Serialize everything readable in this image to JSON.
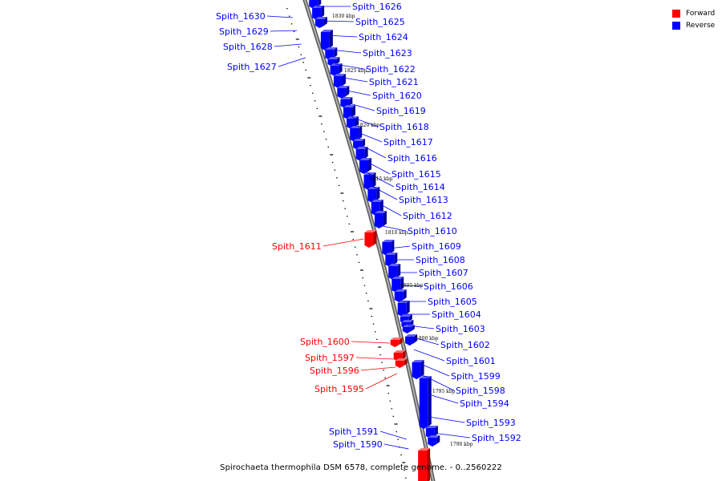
{
  "legend": [
    {
      "label": "Forward",
      "color": "#ff0000"
    },
    {
      "label": "Reverse",
      "color": "#0000ff"
    }
  ],
  "caption": "Spirochaeta thermophila DSM 6578, complete genome. - 0..2560222",
  "colors": {
    "forward": "#ff0000",
    "reverse": "#0000ff",
    "backbone": "#888888"
  },
  "ticks": [
    "1830 kbp",
    "1825 kbp",
    "1820 kbp",
    "1815 kbp",
    "1810 kbp",
    "1805 kbp",
    "1800 kbp",
    "1795 kbp",
    "1790 kbp"
  ],
  "genes": [
    {
      "label": "Spith_1630",
      "strand": "reverse"
    },
    {
      "label": "Spith_1629",
      "strand": "reverse"
    },
    {
      "label": "Spith_1628",
      "strand": "reverse"
    },
    {
      "label": "Spith_1627",
      "strand": "reverse"
    },
    {
      "label": "Spith_1626",
      "strand": "reverse"
    },
    {
      "label": "Spith_1625",
      "strand": "reverse"
    },
    {
      "label": "Spith_1624",
      "strand": "reverse"
    },
    {
      "label": "Spith_1623",
      "strand": "reverse"
    },
    {
      "label": "Spith_1622",
      "strand": "reverse"
    },
    {
      "label": "Spith_1621",
      "strand": "reverse"
    },
    {
      "label": "Spith_1620",
      "strand": "reverse"
    },
    {
      "label": "Spith_1619",
      "strand": "reverse"
    },
    {
      "label": "Spith_1618",
      "strand": "reverse"
    },
    {
      "label": "Spith_1617",
      "strand": "reverse"
    },
    {
      "label": "Spith_1616",
      "strand": "reverse"
    },
    {
      "label": "Spith_1615",
      "strand": "reverse"
    },
    {
      "label": "Spith_1614",
      "strand": "reverse"
    },
    {
      "label": "Spith_1613",
      "strand": "reverse"
    },
    {
      "label": "Spith_1612",
      "strand": "reverse"
    },
    {
      "label": "Spith_1611",
      "strand": "forward"
    },
    {
      "label": "Spith_1610",
      "strand": "reverse"
    },
    {
      "label": "Spith_1609",
      "strand": "reverse"
    },
    {
      "label": "Spith_1608",
      "strand": "reverse"
    },
    {
      "label": "Spith_1607",
      "strand": "reverse"
    },
    {
      "label": "Spith_1606",
      "strand": "reverse"
    },
    {
      "label": "Spith_1605",
      "strand": "reverse"
    },
    {
      "label": "Spith_1604",
      "strand": "reverse"
    },
    {
      "label": "Spith_1603",
      "strand": "reverse"
    },
    {
      "label": "Spith_1602",
      "strand": "reverse"
    },
    {
      "label": "Spith_1601",
      "strand": "reverse"
    },
    {
      "label": "Spith_1600",
      "strand": "forward"
    },
    {
      "label": "Spith_1599",
      "strand": "reverse"
    },
    {
      "label": "Spith_1598",
      "strand": "reverse"
    },
    {
      "label": "Spith_1597",
      "strand": "forward"
    },
    {
      "label": "Spith_1596",
      "strand": "forward"
    },
    {
      "label": "Spith_1595",
      "strand": "forward"
    },
    {
      "label": "Spith_1594",
      "strand": "reverse"
    },
    {
      "label": "Spith_1593",
      "strand": "reverse"
    },
    {
      "label": "Spith_1592",
      "strand": "reverse"
    },
    {
      "label": "Spith_1591",
      "strand": "reverse"
    },
    {
      "label": "Spith_1590",
      "strand": "reverse"
    }
  ]
}
